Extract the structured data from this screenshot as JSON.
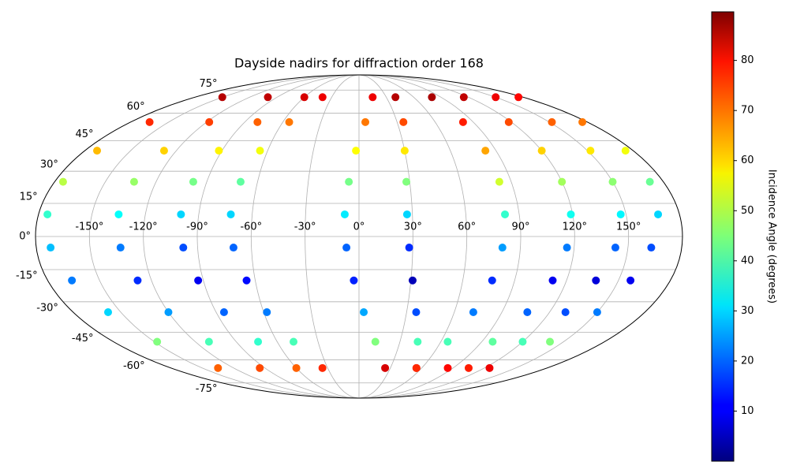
{
  "chart_data": {
    "type": "scatter",
    "title": "Dayside nadirs for diffraction order 168",
    "projection": "mollweide",
    "grid": true,
    "colormap": "jet",
    "colorbar_label": "Incidence Angle (degrees)",
    "clim": [
      0,
      89.7
    ],
    "cticks": [
      10,
      20,
      30,
      40,
      50,
      60,
      70,
      80
    ],
    "xlim": [
      -180,
      180
    ],
    "ylim": [
      -90,
      90
    ],
    "xticks": [
      {
        "value": -150,
        "label": "-150°"
      },
      {
        "value": -120,
        "label": "-120°"
      },
      {
        "value": -90,
        "label": "-90°"
      },
      {
        "value": -60,
        "label": "-60°"
      },
      {
        "value": -30,
        "label": "-30°"
      },
      {
        "value": 0,
        "label": "0°"
      },
      {
        "value": 30,
        "label": "30°"
      },
      {
        "value": 60,
        "label": "60°"
      },
      {
        "value": 90,
        "label": "90°"
      },
      {
        "value": 120,
        "label": "120°"
      },
      {
        "value": 150,
        "label": "150°"
      }
    ],
    "yticks": [
      {
        "value": -75,
        "label": "-75°"
      },
      {
        "value": -60,
        "label": "-60°"
      },
      {
        "value": -45,
        "label": "-45°"
      },
      {
        "value": -30,
        "label": "-30°"
      },
      {
        "value": -15,
        "label": "-15°"
      },
      {
        "value": 0,
        "label": "0°"
      },
      {
        "value": 15,
        "label": "15°"
      },
      {
        "value": 30,
        "label": "30°"
      },
      {
        "value": 45,
        "label": "45°"
      },
      {
        "value": 60,
        "label": "60°"
      },
      {
        "value": 75,
        "label": "75°"
      }
    ],
    "x": [
      -150,
      -165,
      -172,
      -175,
      -175,
      -172,
      -166,
      -158,
      -148,
      -135,
      -100,
      -118,
      -128,
      -133,
      -135,
      -133,
      -128,
      -120,
      -110,
      -95,
      -60,
      -80,
      -92,
      -98,
      -100,
      -98,
      -93,
      -85,
      -74,
      -60,
      -40,
      -55,
      -65,
      -70,
      -72,
      -70,
      -65,
      -58,
      -48,
      -35,
      15,
      5,
      -2,
      -6,
      -8,
      -7,
      -3,
      3,
      12,
      25,
      40,
      35,
      30,
      28,
      27,
      28,
      31,
      36,
      43,
      55,
      80,
      82,
      83,
      83,
      82,
      80,
      77,
      72,
      65,
      55,
      115,
      118,
      120,
      120,
      119,
      116,
      112,
      106,
      98,
      85,
      150,
      152,
      152,
      150,
      147,
      143,
      137,
      130,
      120,
      105,
      175,
      176,
      175,
      172,
      168,
      163,
      157,
      150,
      140,
      125
    ],
    "y": [
      70,
      55,
      40,
      25,
      10,
      -5,
      -20,
      -35,
      -50,
      -65,
      70,
      55,
      40,
      25,
      10,
      -5,
      -20,
      -35,
      -50,
      -65,
      70,
      55,
      40,
      25,
      10,
      -5,
      -20,
      -35,
      -50,
      -65,
      70,
      55,
      40,
      25,
      10,
      -5,
      -20,
      -35,
      -50,
      -65,
      70,
      55,
      40,
      25,
      10,
      -5,
      -20,
      -35,
      -50,
      -65,
      70,
      55,
      40,
      25,
      10,
      -5,
      -20,
      -35,
      -50,
      -65,
      70,
      55,
      40,
      25,
      10,
      -5,
      -20,
      -35,
      -50,
      -65,
      70,
      55,
      40,
      25,
      10,
      -5,
      -20,
      -35,
      -50,
      -65,
      70,
      55,
      40,
      25,
      10,
      -5,
      -20,
      -35,
      -50,
      -65,
      70,
      55,
      40,
      25,
      10,
      -5,
      -20,
      -35,
      -50,
      -65
    ],
    "values": [
      85,
      75,
      62,
      50,
      38,
      28,
      22,
      30,
      45,
      70,
      84,
      73,
      60,
      47,
      34,
      22,
      15,
      25,
      40,
      72,
      82,
      70,
      57,
      44,
      30,
      18,
      10,
      20,
      38,
      70,
      80,
      68,
      55,
      42,
      30,
      20,
      12,
      22,
      40,
      75,
      80,
      68,
      56,
      44,
      32,
      20,
      14,
      26,
      45,
      82,
      85,
      72,
      58,
      45,
      30,
      15,
      5,
      18,
      40,
      80,
      86,
      76,
      64,
      52,
      38,
      25,
      15,
      22,
      40,
      75,
      84,
      72,
      60,
      48,
      35,
      22,
      10,
      20,
      42,
      78,
      80,
      70,
      58,
      46,
      33,
      20,
      8,
      18,
      40,
      76,
      78,
      68,
      55,
      43,
      30,
      18,
      10,
      22,
      45,
      80
    ]
  }
}
